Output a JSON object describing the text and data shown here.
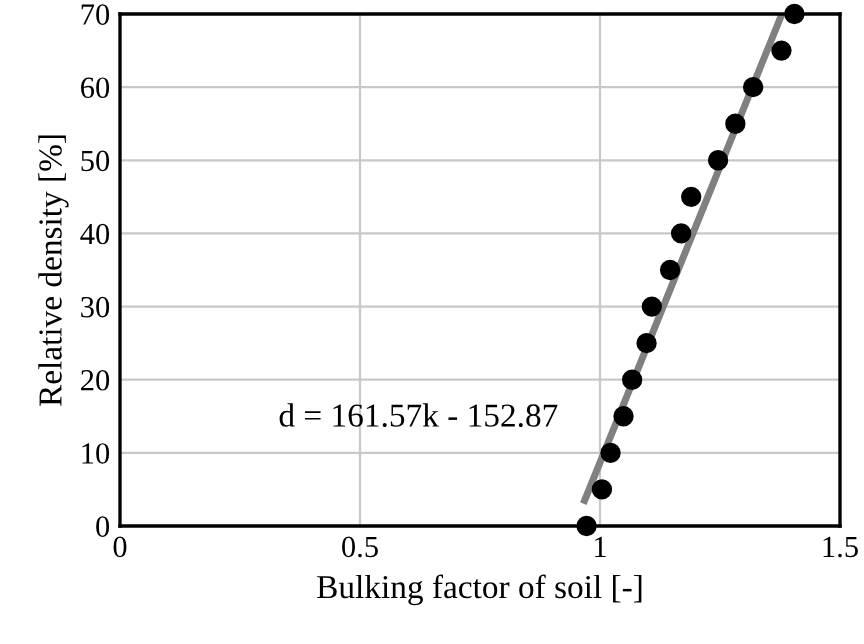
{
  "chart_data": {
    "type": "scatter",
    "xlabel": "Bulking factor of soil [-]",
    "ylabel": "Relative density [%]",
    "xlim": [
      0,
      1.5
    ],
    "ylim": [
      0,
      70
    ],
    "xticks": [
      0,
      0.5,
      1,
      1.5
    ],
    "yticks": [
      0,
      10,
      20,
      30,
      40,
      50,
      60,
      70
    ],
    "grid": true,
    "series": [
      {
        "marker": "circle",
        "color": "#000000",
        "x": [
          0.972,
          1.004,
          1.022,
          1.049,
          1.067,
          1.097,
          1.108,
          1.146,
          1.169,
          1.19,
          1.246,
          1.282,
          1.319,
          1.378,
          1.405
        ],
        "values": [
          0,
          5,
          10,
          15,
          20,
          25,
          30,
          35,
          40,
          45,
          50,
          55,
          60,
          65,
          70
        ]
      },
      {
        "type": "line",
        "marker": "none",
        "color": "#808080",
        "x": [
          0.968,
          1.379
        ],
        "values": [
          3.5,
          70
        ]
      }
    ],
    "annotations": [
      "d = 161.57k - 152.87"
    ]
  }
}
